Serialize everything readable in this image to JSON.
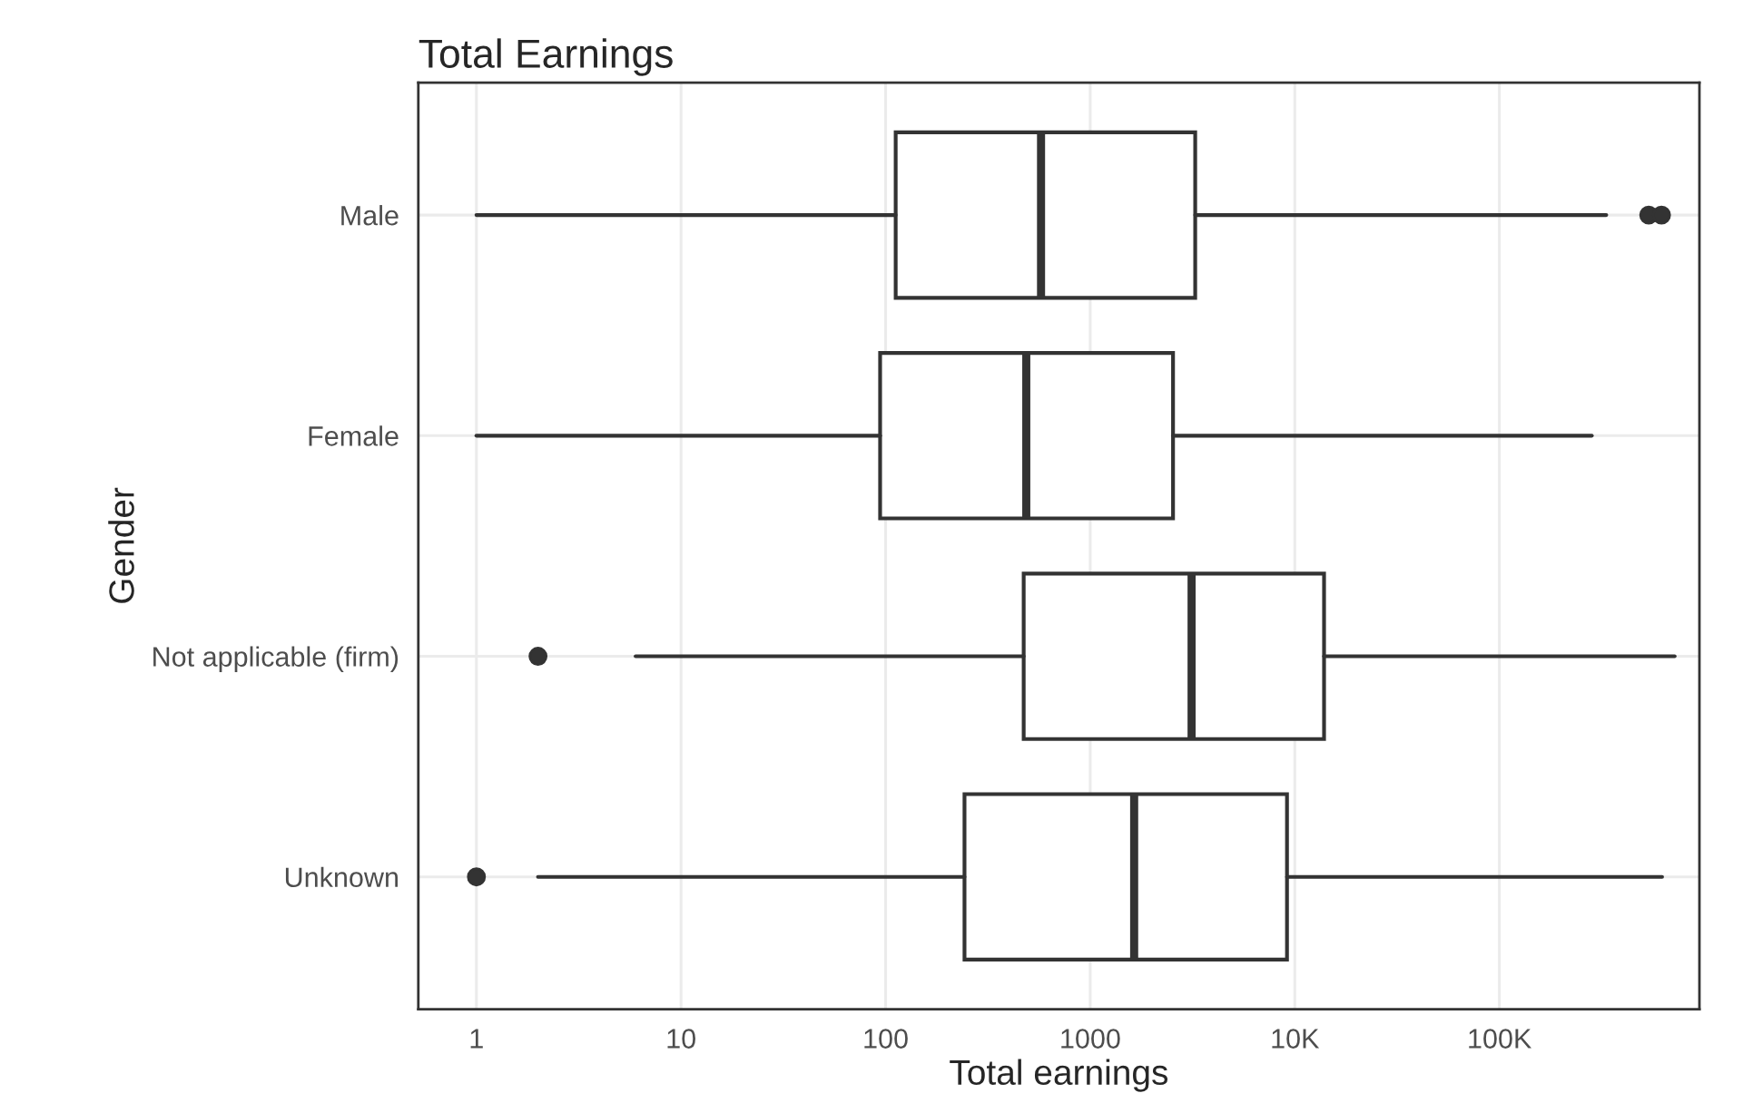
{
  "chart_data": {
    "type": "box",
    "title": "Total Earnings",
    "xlabel": "Total earnings",
    "ylabel": "Gender",
    "orientation": "horizontal",
    "log": "x",
    "categories": [
      "Male",
      "Female",
      "Not applicable (firm)",
      "Unknown"
    ],
    "boxes": [
      {
        "low": 1,
        "q1": 112,
        "median": 575,
        "q3": 3260,
        "high": 333000,
        "outliers": [
          537000,
          620000
        ]
      },
      {
        "low": 1,
        "q1": 94,
        "median": 487,
        "q3": 2540,
        "high": 283000
      },
      {
        "low": 6,
        "q1": 473,
        "median": 3130,
        "q3": 13900,
        "high": 719000,
        "outliers": [
          2
        ]
      },
      {
        "low": 2,
        "q1": 243,
        "median": 1640,
        "q3": 9160,
        "high": 624000,
        "outliers": [
          1
        ]
      }
    ],
    "xlim": [
      0.52,
      950000
    ],
    "xticks": [
      1,
      10,
      100,
      1000,
      {
        "value": 10000,
        "label": "10K"
      },
      {
        "value": 100000,
        "label": "100K"
      }
    ],
    "grid": true
  }
}
